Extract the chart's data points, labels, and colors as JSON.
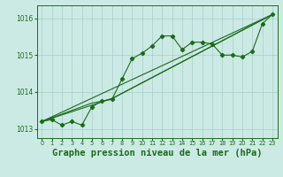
{
  "background_color": "#cceae4",
  "grid_color": "#aacccc",
  "line_color": "#1a6b1a",
  "xlabel": "Graphe pression niveau de la mer (hPa)",
  "xlabel_fontsize": 7.5,
  "xlim": [
    -0.5,
    23.5
  ],
  "ylim": [
    1012.75,
    1016.35
  ],
  "yticks": [
    1013,
    1014,
    1015,
    1016
  ],
  "xticks": [
    0,
    1,
    2,
    3,
    4,
    5,
    6,
    7,
    8,
    9,
    10,
    11,
    12,
    13,
    14,
    15,
    16,
    17,
    18,
    19,
    20,
    21,
    22,
    23
  ],
  "series": [
    [
      0,
      1013.2
    ],
    [
      1,
      1013.25
    ],
    [
      2,
      1013.1
    ],
    [
      3,
      1013.2
    ],
    [
      4,
      1013.1
    ],
    [
      5,
      1013.6
    ],
    [
      6,
      1013.75
    ],
    [
      7,
      1013.8
    ],
    [
      8,
      1014.35
    ],
    [
      9,
      1014.9
    ],
    [
      10,
      1015.05
    ],
    [
      11,
      1015.25
    ],
    [
      12,
      1015.52
    ],
    [
      13,
      1015.52
    ],
    [
      14,
      1015.15
    ],
    [
      15,
      1015.35
    ],
    [
      16,
      1015.35
    ],
    [
      17,
      1015.3
    ],
    [
      18,
      1015.0
    ],
    [
      19,
      1015.0
    ],
    [
      20,
      1014.95
    ],
    [
      21,
      1015.1
    ],
    [
      22,
      1015.85
    ],
    [
      23,
      1016.1
    ]
  ],
  "line2": [
    [
      0,
      1013.2
    ],
    [
      4,
      1013.6
    ],
    [
      5,
      1013.7
    ],
    [
      6,
      1013.75
    ],
    [
      7,
      1013.82
    ],
    [
      23,
      1016.1
    ]
  ],
  "line3": [
    [
      0,
      1013.2
    ],
    [
      7,
      1013.82
    ],
    [
      23,
      1016.1
    ]
  ],
  "line4": [
    [
      0,
      1013.2
    ],
    [
      23,
      1016.1
    ]
  ]
}
